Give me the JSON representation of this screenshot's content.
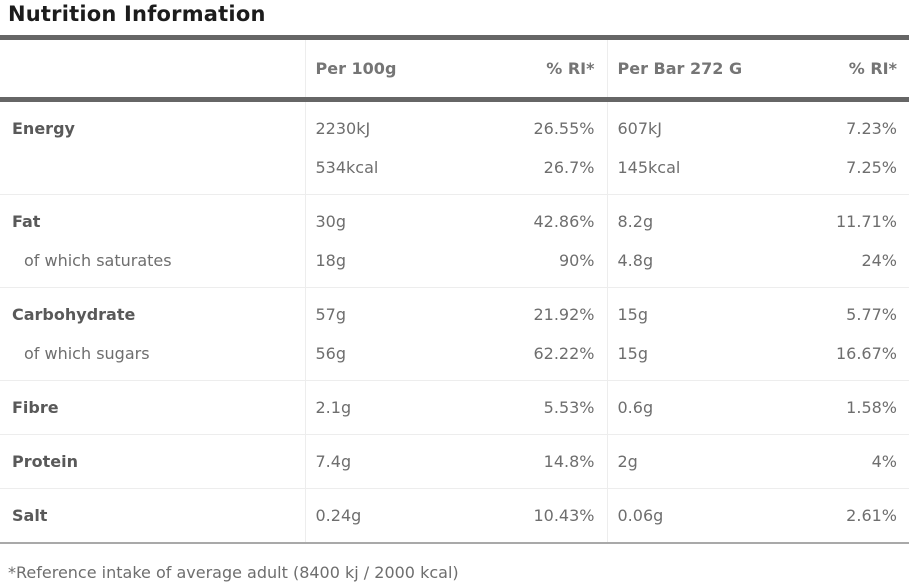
{
  "title": "Nutrition Information",
  "footnote": "*Reference intake of average adult (8400 kj / 2000 kcal)",
  "colors": {
    "title_text": "#1c1c1c",
    "header_text": "#757575",
    "label_text": "#595959",
    "value_text": "#6e6e6e",
    "thick_border": "#666666",
    "thin_border": "#ededed",
    "table_end_border": "#a9a9a9"
  },
  "table": {
    "columns": [
      "",
      "Per 100g",
      "% RI*",
      "Per Bar 272 G",
      "% RI*"
    ],
    "rows": [
      {
        "label": "Energy",
        "sub": false,
        "group_start": true,
        "per100": "2230kJ",
        "ri100": "26.55%",
        "perbar": "607kJ",
        "ribar": "7.23%"
      },
      {
        "label": "",
        "sub": false,
        "group_start": false,
        "per100": "534kcal",
        "ri100": "26.7%",
        "perbar": "145kcal",
        "ribar": "7.25%"
      },
      {
        "label": "Fat",
        "sub": false,
        "group_start": true,
        "per100": "30g",
        "ri100": "42.86%",
        "perbar": "8.2g",
        "ribar": "11.71%"
      },
      {
        "label": "of which saturates",
        "sub": true,
        "group_start": false,
        "per100": "18g",
        "ri100": "90%",
        "perbar": "4.8g",
        "ribar": "24%"
      },
      {
        "label": "Carbohydrate",
        "sub": false,
        "group_start": true,
        "per100": "57g",
        "ri100": "21.92%",
        "perbar": "15g",
        "ribar": "5.77%"
      },
      {
        "label": "of which sugars",
        "sub": true,
        "group_start": false,
        "per100": "56g",
        "ri100": "62.22%",
        "perbar": "15g",
        "ribar": "16.67%"
      },
      {
        "label": "Fibre",
        "sub": false,
        "group_start": true,
        "per100": "2.1g",
        "ri100": "5.53%",
        "perbar": "0.6g",
        "ribar": "1.58%"
      },
      {
        "label": "Protein",
        "sub": false,
        "group_start": true,
        "per100": "7.4g",
        "ri100": "14.8%",
        "perbar": "2g",
        "ribar": "4%"
      },
      {
        "label": "Salt",
        "sub": false,
        "group_start": true,
        "per100": "0.24g",
        "ri100": "10.43%",
        "perbar": "0.06g",
        "ribar": "2.61%"
      }
    ]
  }
}
